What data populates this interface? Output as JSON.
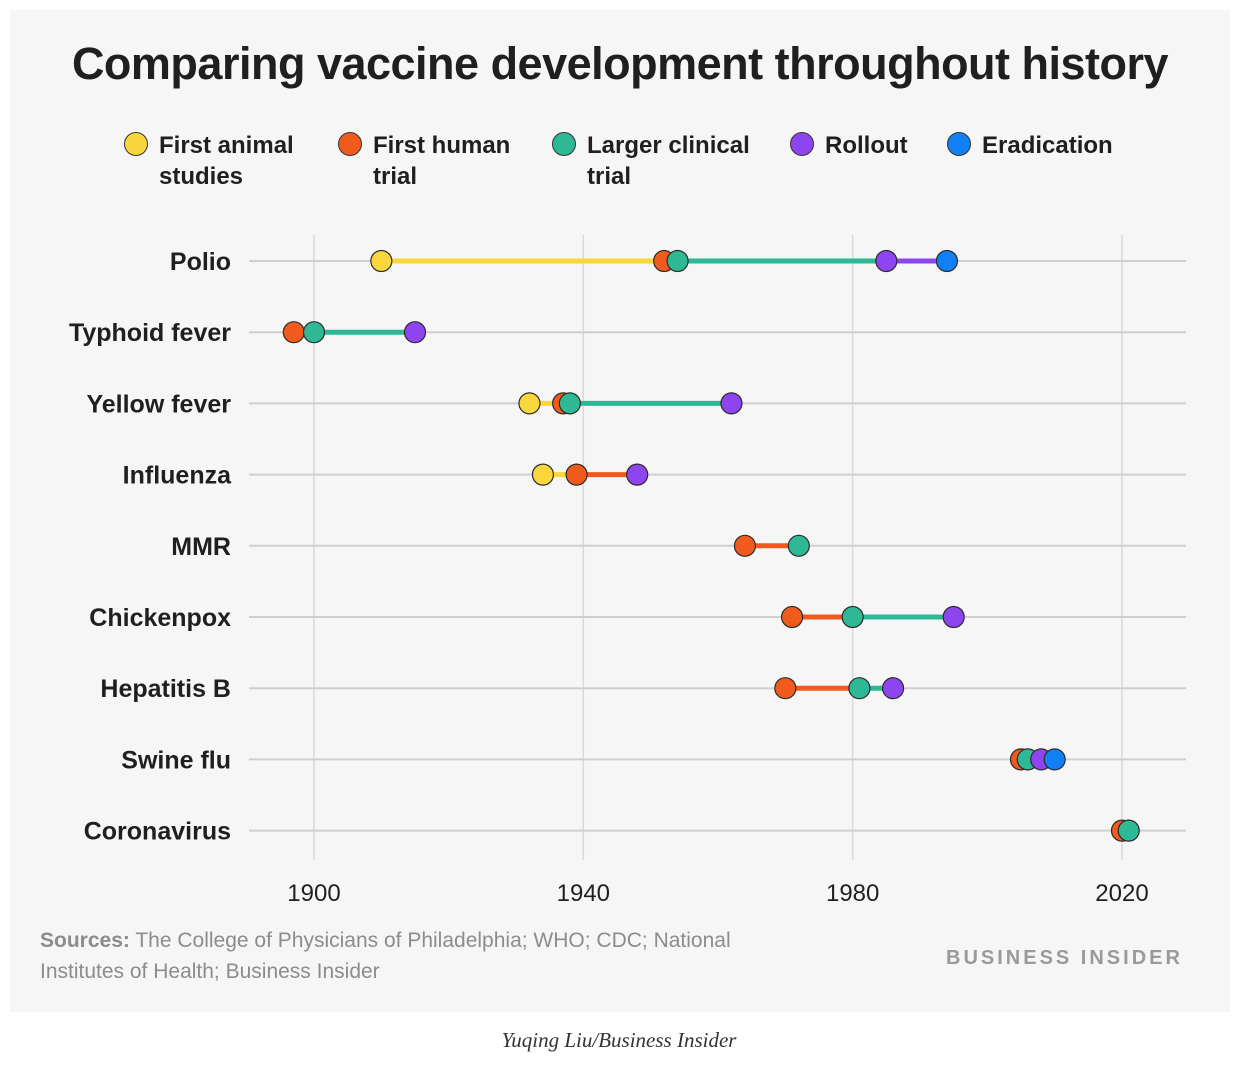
{
  "chart_data": {
    "type": "dot-range",
    "title": "Comparing vaccine development throughout history",
    "legend": [
      {
        "name": "First animal studies",
        "color": "#f9d63b"
      },
      {
        "name": "First human trial",
        "color": "#f05b1d"
      },
      {
        "name": "Larger clinical trial",
        "color": "#2fb896"
      },
      {
        "name": "Rollout",
        "color": "#8e45f0"
      },
      {
        "name": "Eradication",
        "color": "#117ff5"
      }
    ],
    "x_ticks": [
      1900,
      1940,
      1980,
      2020
    ],
    "xlim": [
      1890,
      2030
    ],
    "grid": "vertical at ticks, horizontal per row",
    "rows": [
      {
        "label": "Polio",
        "events": [
          {
            "stage": "First animal studies",
            "year": 1910
          },
          {
            "stage": "First human trial",
            "year": 1952
          },
          {
            "stage": "Larger clinical trial",
            "year": 1954
          },
          {
            "stage": "Rollout",
            "year": 1985
          },
          {
            "stage": "Eradication",
            "year": 1994
          }
        ]
      },
      {
        "label": "Typhoid fever",
        "events": [
          {
            "stage": "First human trial",
            "year": 1897
          },
          {
            "stage": "Larger clinical trial",
            "year": 1900
          },
          {
            "stage": "Rollout",
            "year": 1915
          }
        ]
      },
      {
        "label": "Yellow fever",
        "events": [
          {
            "stage": "First animal studies",
            "year": 1932
          },
          {
            "stage": "First human trial",
            "year": 1937
          },
          {
            "stage": "Larger clinical trial",
            "year": 1938
          },
          {
            "stage": "Rollout",
            "year": 1962
          }
        ]
      },
      {
        "label": "Influenza",
        "events": [
          {
            "stage": "First animal studies",
            "year": 1934
          },
          {
            "stage": "First human trial",
            "year": 1939
          },
          {
            "stage": "Rollout",
            "year": 1948
          }
        ]
      },
      {
        "label": "MMR",
        "events": [
          {
            "stage": "First human trial",
            "year": 1964
          },
          {
            "stage": "Larger clinical trial",
            "year": 1972
          }
        ]
      },
      {
        "label": "Chickenpox",
        "events": [
          {
            "stage": "First human trial",
            "year": 1971
          },
          {
            "stage": "Larger clinical trial",
            "year": 1980
          },
          {
            "stage": "Rollout",
            "year": 1995
          }
        ]
      },
      {
        "label": "Hepatitis B",
        "events": [
          {
            "stage": "First human trial",
            "year": 1970
          },
          {
            "stage": "Larger clinical trial",
            "year": 1981
          },
          {
            "stage": "Rollout",
            "year": 1986
          }
        ]
      },
      {
        "label": "Swine flu",
        "events": [
          {
            "stage": "First human trial",
            "year": 2005
          },
          {
            "stage": "Larger clinical trial",
            "year": 2006
          },
          {
            "stage": "Rollout",
            "year": 2008
          },
          {
            "stage": "Eradication",
            "year": 2010
          }
        ]
      },
      {
        "label": "Coronavirus",
        "events": [
          {
            "stage": "First human trial",
            "year": 2020
          },
          {
            "stage": "Larger clinical trial",
            "year": 2021
          }
        ]
      }
    ]
  },
  "legend_labels": {
    "animal": "First animal studies",
    "human": "First human trial",
    "clinical": "Larger clinical trial",
    "rollout": "Rollout",
    "eradication": "Eradication"
  },
  "sources_label": "Sources:",
  "sources_text": "The College of Physicians of Philadelphia; WHO; CDC; National Institutes of Health; Business Insider",
  "brand": "BUSINESS INSIDER",
  "credit": "Yuqing Liu/Business Insider"
}
